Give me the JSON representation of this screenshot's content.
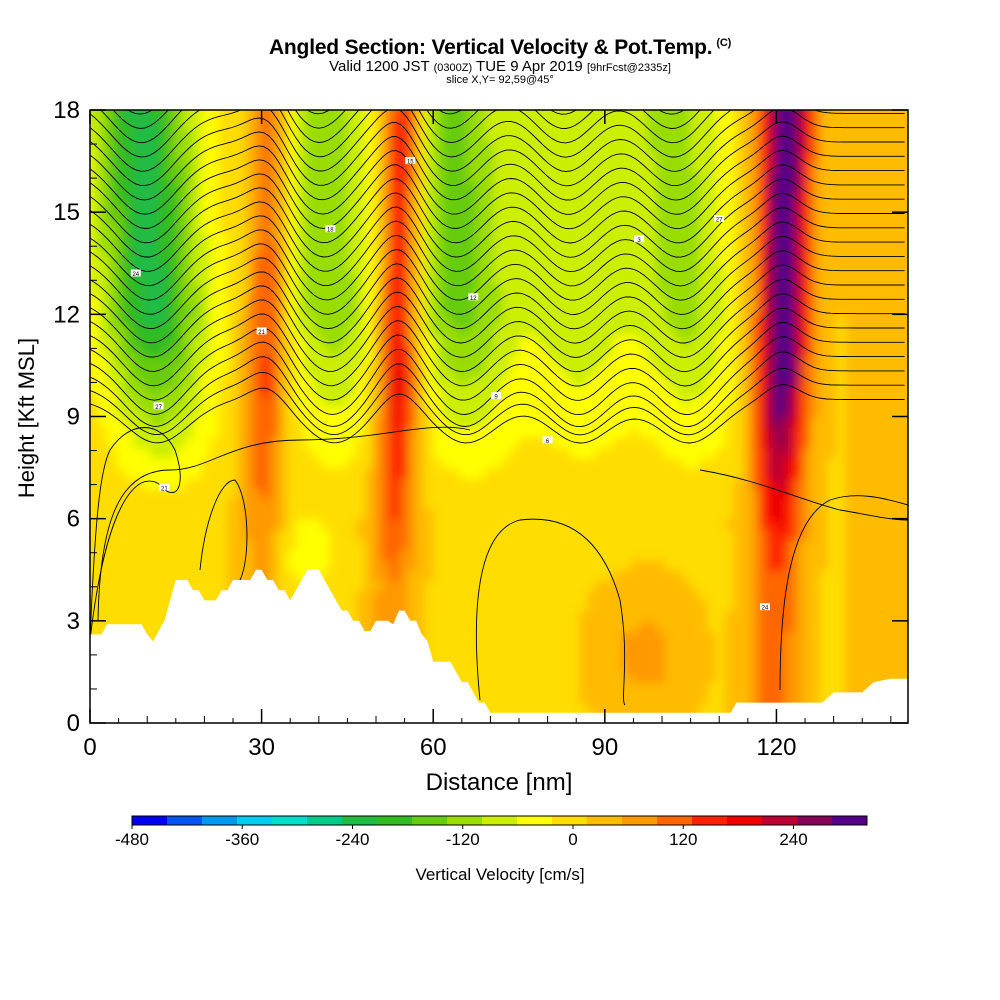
{
  "title": {
    "main": "Angled Section: Vertical Velocity & Pot.Temp.",
    "main_tag": "(C)",
    "valid_prefix": "Valid 1200 JST",
    "valid_utc": "(0300Z)",
    "valid_date": "TUE 9 Apr 2019",
    "forecast": "[9hrFcst@2335z]",
    "slice": "slice X,Y= 92,59@45°"
  },
  "chart_data": {
    "type": "heatmap",
    "xlabel": "Distance [nm]",
    "ylabel": "Height [Kft MSL]",
    "xlim": [
      0,
      143
    ],
    "ylim": [
      0,
      18
    ],
    "xticks": [
      0,
      30,
      60,
      90,
      120
    ],
    "yticks": [
      0,
      3,
      6,
      9,
      12,
      15,
      18
    ],
    "colorbar": {
      "label": "Vertical Velocity [cm/s]",
      "ticks": [
        -480,
        -360,
        -240,
        -120,
        0,
        120,
        240
      ],
      "bins": [
        -480,
        -440,
        -400,
        -360,
        -320,
        -280,
        -240,
        -200,
        -160,
        -120,
        -80,
        -40,
        0,
        40,
        80,
        120,
        160,
        200,
        240,
        280,
        320
      ],
      "colors": [
        "#0000ee",
        "#0055ee",
        "#0099ee",
        "#00ccee",
        "#00ddcc",
        "#00cc88",
        "#22bb44",
        "#33bb22",
        "#66cc11",
        "#99dd00",
        "#ccee00",
        "#ffff00",
        "#ffdd00",
        "#ffbb00",
        "#ff9900",
        "#ff6600",
        "#ff2200",
        "#ee0000",
        "#bb0033",
        "#880055",
        "#550088"
      ]
    },
    "updrafts": [
      {
        "x": 31,
        "strength": 150
      },
      {
        "x": 54,
        "strength": 230
      },
      {
        "x": 121,
        "strength": 320
      }
    ],
    "downdrafts": [
      {
        "x": 11,
        "strength": -250
      },
      {
        "x": 42,
        "strength": -140
      },
      {
        "x": 65,
        "strength": -170
      },
      {
        "x": 85,
        "strength": -110
      },
      {
        "x": 104,
        "strength": -130
      }
    ],
    "terrain": {
      "x": [
        0,
        2,
        3,
        9,
        10,
        11,
        12,
        13,
        14,
        15,
        16,
        17,
        18,
        19,
        20,
        21,
        22,
        23,
        24,
        25,
        26,
        27,
        28,
        29,
        30,
        31,
        32,
        33,
        34,
        35,
        36,
        37,
        38,
        39,
        40,
        41,
        42,
        43,
        44,
        45,
        46,
        47,
        48,
        49,
        50,
        51,
        52,
        53,
        54,
        55,
        56,
        57,
        58,
        59,
        60,
        61,
        62,
        63,
        64,
        65,
        66,
        67,
        68,
        69,
        70,
        71,
        72,
        73,
        74,
        75,
        76,
        78,
        80,
        85,
        90,
        95,
        100,
        105,
        110,
        112,
        113,
        115,
        117,
        120,
        125,
        128,
        130,
        135,
        137,
        140,
        143
      ],
      "h": [
        2.6,
        2.6,
        2.9,
        2.9,
        2.6,
        2.4,
        2.7,
        3.0,
        3.6,
        4.2,
        4.2,
        4.2,
        3.9,
        3.9,
        3.6,
        3.6,
        3.6,
        3.9,
        3.9,
        4.2,
        4.2,
        4.2,
        4.2,
        4.5,
        4.5,
        4.2,
        4.2,
        3.9,
        3.9,
        3.6,
        3.9,
        4.2,
        4.5,
        4.5,
        4.5,
        4.2,
        3.9,
        3.6,
        3.3,
        3.3,
        3.0,
        3.0,
        2.7,
        2.7,
        3.0,
        3.0,
        3.0,
        2.9,
        3.3,
        3.3,
        3.0,
        3.0,
        2.6,
        2.4,
        1.8,
        1.8,
        1.8,
        1.8,
        1.5,
        1.2,
        1.2,
        0.9,
        0.6,
        0.6,
        0.3,
        0.3,
        0.3,
        0.3,
        0.3,
        0.3,
        0.3,
        0.3,
        0.3,
        0.3,
        0.3,
        0.3,
        0.3,
        0.3,
        0.3,
        0.3,
        0.6,
        0.6,
        0.6,
        0.6,
        0.6,
        0.6,
        0.9,
        0.9,
        1.2,
        1.3,
        1.3
      ]
    },
    "contour_labels": [
      "27",
      "24",
      "21",
      "18",
      "15",
      "12",
      "9",
      "6",
      "3"
    ]
  }
}
